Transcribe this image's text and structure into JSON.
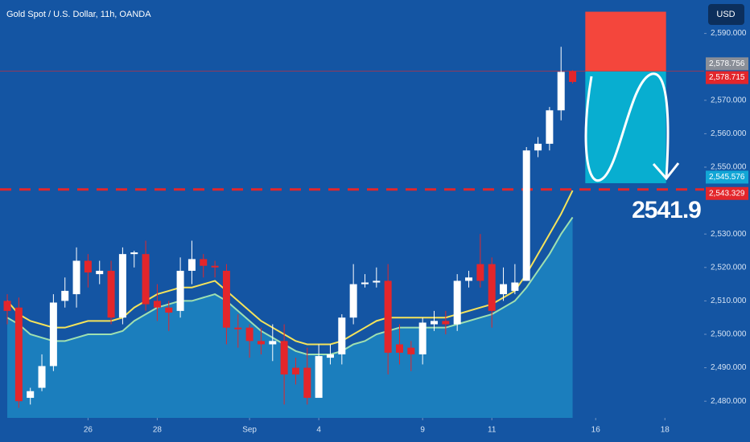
{
  "chart_data": {
    "type": "candlestick",
    "title": "Gold Spot / U.S. Dollar, 11h, OANDA",
    "currency": "USD",
    "x": [
      0,
      1,
      2,
      3,
      4,
      5,
      6,
      7,
      8,
      9,
      10,
      11,
      12,
      13,
      14,
      15,
      16,
      17,
      18,
      19,
      20,
      21,
      22,
      23,
      24,
      25,
      26,
      27,
      28,
      29,
      30,
      31,
      32,
      33,
      34,
      35,
      36,
      37,
      38,
      39,
      40,
      41,
      42,
      43,
      44,
      45,
      46,
      47,
      48,
      49
    ],
    "open": [
      2510,
      2508,
      2481,
      2484,
      2490.5,
      2510,
      2512,
      2522,
      2518,
      2519,
      2505,
      2524,
      2524,
      2510,
      2508,
      2507,
      2519,
      2522.5,
      2520.5,
      2519,
      2502,
      2502,
      2498,
      2497,
      2498,
      2490,
      2490,
      2481,
      2493,
      2494,
      2505,
      2515,
      2515.5,
      2516,
      2497,
      2496,
      2494,
      2503,
      2504,
      2503,
      2516,
      2521,
      2521,
      2512,
      2513,
      2516,
      2555,
      2557,
      2567,
      2578.7
    ],
    "high": [
      2512,
      2511,
      2484,
      2494,
      2512,
      2517,
      2526,
      2524,
      2522,
      2522,
      2526,
      2525,
      2528,
      2515,
      2510,
      2523,
      2528,
      2524,
      2522,
      2521,
      2506,
      2503,
      2502,
      2503,
      2503,
      2493,
      2496,
      2497,
      2497,
      2506,
      2521,
      2518,
      2520,
      2521,
      2503,
      2498,
      2505,
      2507,
      2507,
      2518,
      2519,
      2530,
      2523,
      2520,
      2521,
      2556,
      2559,
      2568,
      2586,
      2579
    ],
    "low": [
      2503,
      2478,
      2479,
      2483,
      2489,
      2508,
      2508,
      2514,
      2515,
      2503,
      2503,
      2520,
      2507,
      2504,
      2501,
      2505,
      2515,
      2517,
      2517,
      2497,
      2496,
      2493,
      2494,
      2492,
      2479,
      2485,
      2479,
      2481,
      2491,
      2491,
      2503,
      2514,
      2514,
      2488,
      2491,
      2489,
      2491,
      2501,
      2500,
      2501,
      2514,
      2514,
      2502,
      2510,
      2512,
      2516,
      2553,
      2555,
      2564,
      2575
    ],
    "close": [
      2507,
      2480,
      2483,
      2490.5,
      2509.5,
      2513,
      2522,
      2518.5,
      2519,
      2505,
      2524,
      2524.5,
      2509,
      2508,
      2506.5,
      2519,
      2522.5,
      2520.5,
      2520,
      2502,
      2501.5,
      2498,
      2497,
      2498,
      2488,
      2488,
      2481,
      2493.5,
      2494,
      2505,
      2515,
      2515.5,
      2516,
      2494.5,
      2494.5,
      2494,
      2503.5,
      2504,
      2503,
      2516,
      2517,
      2516,
      2507,
      2515,
      2515.5,
      2555,
      2557,
      2567,
      2578.5,
      2575.5
    ],
    "up_color": "#ffffff",
    "down_color": "#e3262b",
    "ma_lines": [
      {
        "color": "#f5e35a",
        "values": [
          2510,
          2506,
          2504,
          2503,
          2502,
          2502,
          2503,
          2504,
          2504,
          2504,
          2505,
          2508,
          2510,
          2512,
          2513,
          2514,
          2514,
          2515,
          2516,
          2513,
          2510,
          2507,
          2504,
          2502,
          2500,
          2498,
          2497,
          2497,
          2497,
          2498,
          2500,
          2502,
          2504,
          2505,
          2505,
          2505,
          2505,
          2505,
          2505,
          2506,
          2507,
          2508,
          2509,
          2511,
          2513,
          2518,
          2524,
          2530,
          2536,
          2543
        ]
      },
      {
        "color": "#9fe0b0",
        "fill": "#1c86c2",
        "values": [
          2505,
          2503,
          2500,
          2499,
          2498,
          2498,
          2499,
          2500,
          2500,
          2500,
          2501,
          2504,
          2506,
          2508,
          2509,
          2510,
          2510,
          2511,
          2512,
          2510,
          2507,
          2504,
          2501,
          2499,
          2497,
          2495,
          2494,
          2494,
          2494,
          2495,
          2497,
          2498,
          2500,
          2501,
          2502,
          2502,
          2502,
          2502,
          2502,
          2503,
          2504,
          2505,
          2506,
          2508,
          2510,
          2514,
          2519,
          2524,
          2530,
          2535
        ]
      }
    ],
    "xlim": [
      -0.63,
      60.4
    ],
    "xticks": [
      {
        "value": 7,
        "label": "26"
      },
      {
        "value": 13,
        "label": "28"
      },
      {
        "value": 21,
        "label": "Sep"
      },
      {
        "value": 27,
        "label": "4"
      },
      {
        "value": 36,
        "label": "9"
      },
      {
        "value": 42,
        "label": "11"
      },
      {
        "value": 51,
        "label": "16"
      },
      {
        "value": 57,
        "label": "18"
      }
    ],
    "ylim": [
      2475,
      2600
    ],
    "yticks": [
      {
        "value": 2480,
        "label": "2,480.000"
      },
      {
        "value": 2490,
        "label": "2,490.000"
      },
      {
        "value": 2500,
        "label": "2,500.000"
      },
      {
        "value": 2510,
        "label": "2,510.000"
      },
      {
        "value": 2520,
        "label": "2,520.000"
      },
      {
        "value": 2530,
        "label": "2,530.000"
      },
      {
        "value": 2550,
        "label": "2,550.000"
      },
      {
        "value": 2560,
        "label": "2,560.000"
      },
      {
        "value": 2570,
        "label": "2,570.000"
      },
      {
        "value": 2590,
        "label": "2,590.000"
      }
    ],
    "price_labels": [
      {
        "value": 2578.756,
        "label": "2,578.756",
        "color": "#8a8f98"
      },
      {
        "value": 2578.715,
        "label": "2,578.715",
        "color": "#e3262b"
      },
      {
        "value": 2545.576,
        "label": "2,545.576",
        "color": "#12a6d6"
      },
      {
        "value": 2543.329,
        "label": "2,543.329",
        "color": "#e3262b"
      }
    ],
    "position": {
      "x": [
        50.1,
        57.1
      ],
      "stop": 2596.5,
      "entry": 2578.715,
      "target": 2545.2,
      "stop_color": "#f4463c",
      "target_color": "#08aed0"
    },
    "annotation": "2541.9"
  }
}
